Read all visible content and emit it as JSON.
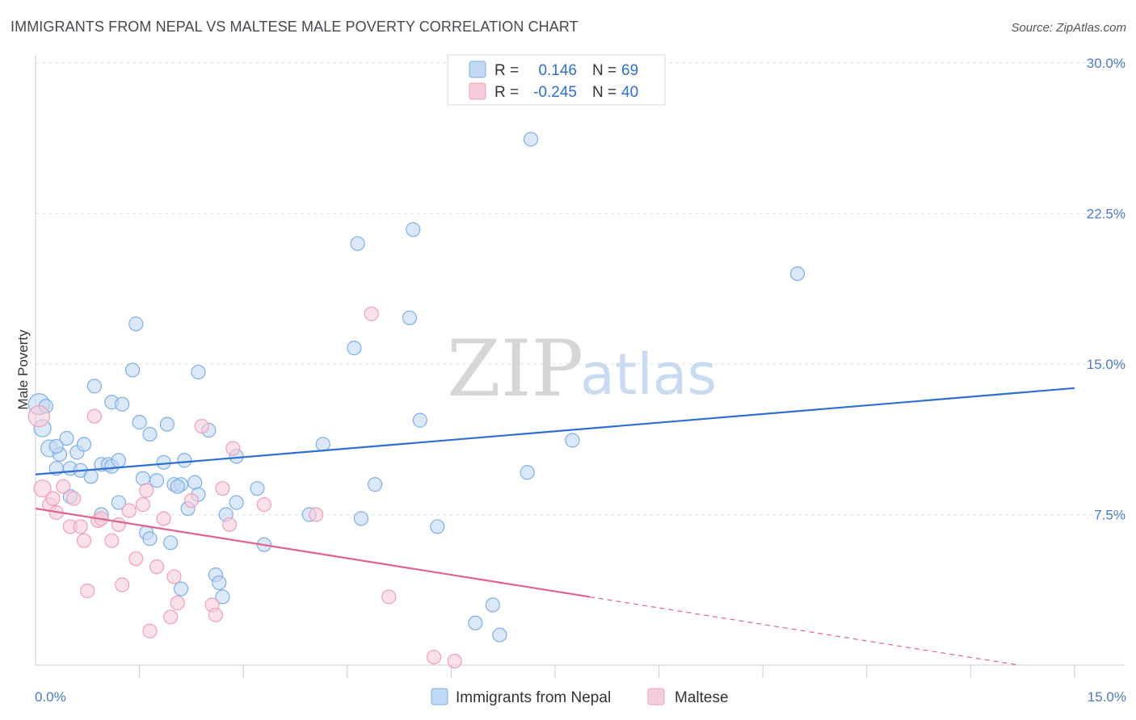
{
  "chart_data": {
    "type": "scatter",
    "title": "IMMIGRANTS FROM NEPAL VS MALTESE MALE POVERTY CORRELATION CHART",
    "source": "Source: ZipAtlas.com",
    "xlabel": "",
    "ylabel": "Male Poverty",
    "xlim": [
      0,
      15
    ],
    "ylim": [
      0,
      30
    ],
    "x_tick_labels": [
      "0.0%",
      "15.0%"
    ],
    "y_ticks": [
      {
        "value": 7.5,
        "label": "7.5%"
      },
      {
        "value": 15,
        "label": "15.0%"
      },
      {
        "value": 22.5,
        "label": "22.5%"
      },
      {
        "value": 30,
        "label": "30.0%"
      }
    ],
    "watermark": {
      "zip": "ZIP",
      "atlas": "atlas"
    },
    "legend": {
      "r_label": "R =",
      "n_label": "N =",
      "entries": [
        {
          "r": "0.146",
          "n": "69"
        },
        {
          "r": "-0.245",
          "n": "40"
        }
      ]
    },
    "series": [
      {
        "name": "Immigrants from Nepal",
        "color": "#7eaee8",
        "fill": "#c3d8f3",
        "line_color": "#2d6fd2",
        "trend": {
          "x0": 0,
          "y0": 9.5,
          "x1": 15,
          "y1": 13.8
        },
        "points": [
          {
            "x": 0.05,
            "y": 13.0,
            "s": 3
          },
          {
            "x": 0.1,
            "y": 11.8,
            "s": 2
          },
          {
            "x": 0.2,
            "y": 10.8,
            "s": 2
          },
          {
            "x": 0.35,
            "y": 10.5,
            "s": 1
          },
          {
            "x": 0.45,
            "y": 11.3,
            "s": 1
          },
          {
            "x": 0.6,
            "y": 10.6,
            "s": 1
          },
          {
            "x": 0.7,
            "y": 11.0,
            "s": 1
          },
          {
            "x": 0.3,
            "y": 9.8,
            "s": 1
          },
          {
            "x": 0.5,
            "y": 9.8,
            "s": 1
          },
          {
            "x": 0.65,
            "y": 9.7,
            "s": 1
          },
          {
            "x": 0.8,
            "y": 9.4,
            "s": 1
          },
          {
            "x": 0.95,
            "y": 10.0,
            "s": 1
          },
          {
            "x": 1.05,
            "y": 10.0,
            "s": 1
          },
          {
            "x": 1.1,
            "y": 9.9,
            "s": 1
          },
          {
            "x": 1.2,
            "y": 10.2,
            "s": 1
          },
          {
            "x": 0.85,
            "y": 13.9,
            "s": 1
          },
          {
            "x": 1.1,
            "y": 13.1,
            "s": 1
          },
          {
            "x": 1.25,
            "y": 13.0,
            "s": 1
          },
          {
            "x": 1.4,
            "y": 14.7,
            "s": 1
          },
          {
            "x": 1.45,
            "y": 17.0,
            "s": 1
          },
          {
            "x": 1.5,
            "y": 12.1,
            "s": 1
          },
          {
            "x": 1.65,
            "y": 11.5,
            "s": 1
          },
          {
            "x": 1.85,
            "y": 10.1,
            "s": 1
          },
          {
            "x": 1.9,
            "y": 12.0,
            "s": 1
          },
          {
            "x": 2.15,
            "y": 10.2,
            "s": 1
          },
          {
            "x": 2.35,
            "y": 14.6,
            "s": 1
          },
          {
            "x": 2.5,
            "y": 11.7,
            "s": 1
          },
          {
            "x": 1.55,
            "y": 9.3,
            "s": 1
          },
          {
            "x": 1.75,
            "y": 9.2,
            "s": 1
          },
          {
            "x": 2.0,
            "y": 9.0,
            "s": 1
          },
          {
            "x": 2.1,
            "y": 9.0,
            "s": 1
          },
          {
            "x": 2.3,
            "y": 9.1,
            "s": 1
          },
          {
            "x": 2.05,
            "y": 8.9,
            "s": 1
          },
          {
            "x": 2.35,
            "y": 8.5,
            "s": 1
          },
          {
            "x": 0.5,
            "y": 8.4,
            "s": 1
          },
          {
            "x": 1.2,
            "y": 8.1,
            "s": 1
          },
          {
            "x": 0.95,
            "y": 7.5,
            "s": 1
          },
          {
            "x": 1.6,
            "y": 6.6,
            "s": 1
          },
          {
            "x": 1.65,
            "y": 6.3,
            "s": 1
          },
          {
            "x": 1.95,
            "y": 6.1,
            "s": 1
          },
          {
            "x": 2.2,
            "y": 7.8,
            "s": 1
          },
          {
            "x": 2.9,
            "y": 10.4,
            "s": 1
          },
          {
            "x": 2.75,
            "y": 7.5,
            "s": 1
          },
          {
            "x": 2.9,
            "y": 8.1,
            "s": 1
          },
          {
            "x": 3.2,
            "y": 8.8,
            "s": 1
          },
          {
            "x": 3.3,
            "y": 6.0,
            "s": 1
          },
          {
            "x": 2.6,
            "y": 4.5,
            "s": 1
          },
          {
            "x": 2.65,
            "y": 4.1,
            "s": 1
          },
          {
            "x": 2.7,
            "y": 3.4,
            "s": 1
          },
          {
            "x": 2.1,
            "y": 3.8,
            "s": 1
          },
          {
            "x": 3.95,
            "y": 7.5,
            "s": 1
          },
          {
            "x": 4.15,
            "y": 11.0,
            "s": 1
          },
          {
            "x": 4.65,
            "y": 21.0,
            "s": 1
          },
          {
            "x": 4.6,
            "y": 15.8,
            "s": 1
          },
          {
            "x": 4.9,
            "y": 9.0,
            "s": 1
          },
          {
            "x": 4.7,
            "y": 7.3,
            "s": 1
          },
          {
            "x": 5.45,
            "y": 21.7,
            "s": 1
          },
          {
            "x": 5.4,
            "y": 17.3,
            "s": 1
          },
          {
            "x": 5.55,
            "y": 12.2,
            "s": 1
          },
          {
            "x": 5.8,
            "y": 6.9,
            "s": 1
          },
          {
            "x": 6.35,
            "y": 2.1,
            "s": 1
          },
          {
            "x": 6.6,
            "y": 3.0,
            "s": 1
          },
          {
            "x": 6.7,
            "y": 1.5,
            "s": 1
          },
          {
            "x": 7.15,
            "y": 26.2,
            "s": 1
          },
          {
            "x": 7.1,
            "y": 9.6,
            "s": 1
          },
          {
            "x": 7.75,
            "y": 11.2,
            "s": 1
          },
          {
            "x": 11.0,
            "y": 19.5,
            "s": 1
          },
          {
            "x": 0.3,
            "y": 10.9,
            "s": 1
          },
          {
            "x": 0.15,
            "y": 12.9,
            "s": 1
          }
        ]
      },
      {
        "name": "Maltese",
        "color": "#eea0b8",
        "fill": "#f7cdda",
        "line_color": "#e0628f",
        "trend": {
          "x0": 0,
          "y0": 7.8,
          "x1": 8.0,
          "y1": 3.4
        },
        "trend_ext": {
          "x0": 8.0,
          "y0": 3.4,
          "x1": 14.2,
          "y1": 0.0
        },
        "points": [
          {
            "x": 0.05,
            "y": 12.4,
            "s": 3
          },
          {
            "x": 0.1,
            "y": 8.8,
            "s": 2
          },
          {
            "x": 0.2,
            "y": 8.0,
            "s": 1
          },
          {
            "x": 0.25,
            "y": 8.3,
            "s": 1
          },
          {
            "x": 0.3,
            "y": 7.6,
            "s": 1
          },
          {
            "x": 0.4,
            "y": 8.9,
            "s": 1
          },
          {
            "x": 0.5,
            "y": 6.9,
            "s": 1
          },
          {
            "x": 0.55,
            "y": 8.3,
            "s": 1
          },
          {
            "x": 0.65,
            "y": 6.9,
            "s": 1
          },
          {
            "x": 0.7,
            "y": 6.2,
            "s": 1
          },
          {
            "x": 0.75,
            "y": 3.7,
            "s": 1
          },
          {
            "x": 0.85,
            "y": 12.4,
            "s": 1
          },
          {
            "x": 0.9,
            "y": 7.2,
            "s": 1
          },
          {
            "x": 0.95,
            "y": 7.3,
            "s": 1
          },
          {
            "x": 1.1,
            "y": 6.2,
            "s": 1
          },
          {
            "x": 1.2,
            "y": 7.0,
            "s": 1
          },
          {
            "x": 1.25,
            "y": 4.0,
            "s": 1
          },
          {
            "x": 1.35,
            "y": 7.7,
            "s": 1
          },
          {
            "x": 1.45,
            "y": 5.3,
            "s": 1
          },
          {
            "x": 1.55,
            "y": 8.0,
            "s": 1
          },
          {
            "x": 1.6,
            "y": 8.7,
            "s": 1
          },
          {
            "x": 1.65,
            "y": 1.7,
            "s": 1
          },
          {
            "x": 1.75,
            "y": 4.9,
            "s": 1
          },
          {
            "x": 1.85,
            "y": 7.3,
            "s": 1
          },
          {
            "x": 1.95,
            "y": 2.4,
            "s": 1
          },
          {
            "x": 2.0,
            "y": 4.4,
            "s": 1
          },
          {
            "x": 2.05,
            "y": 3.1,
            "s": 1
          },
          {
            "x": 2.25,
            "y": 8.2,
            "s": 1
          },
          {
            "x": 2.4,
            "y": 11.9,
            "s": 1
          },
          {
            "x": 2.55,
            "y": 3.0,
            "s": 1
          },
          {
            "x": 2.6,
            "y": 2.5,
            "s": 1
          },
          {
            "x": 2.7,
            "y": 8.8,
            "s": 1
          },
          {
            "x": 2.8,
            "y": 7.0,
            "s": 1
          },
          {
            "x": 2.85,
            "y": 10.8,
            "s": 1
          },
          {
            "x": 3.3,
            "y": 8.0,
            "s": 1
          },
          {
            "x": 4.05,
            "y": 7.5,
            "s": 1
          },
          {
            "x": 4.85,
            "y": 17.5,
            "s": 1
          },
          {
            "x": 5.1,
            "y": 3.4,
            "s": 1
          },
          {
            "x": 5.75,
            "y": 0.4,
            "s": 1
          },
          {
            "x": 6.05,
            "y": 0.2,
            "s": 1
          }
        ]
      }
    ]
  }
}
